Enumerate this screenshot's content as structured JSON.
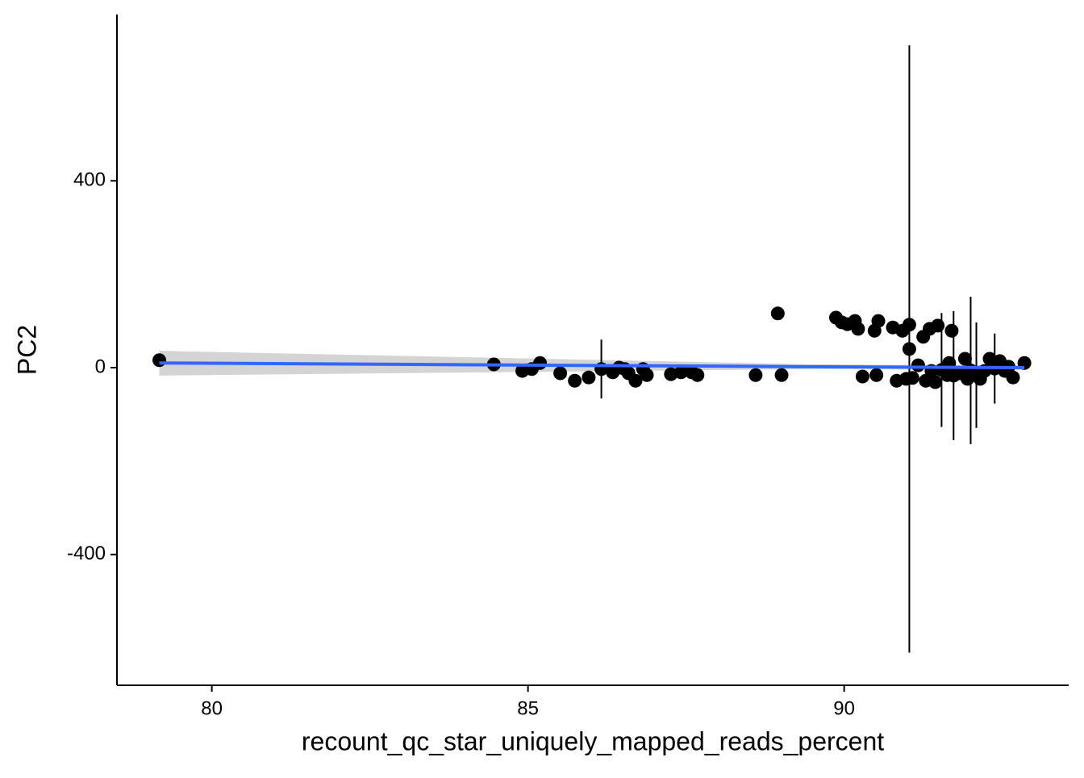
{
  "chart_data": {
    "type": "scatter",
    "x_label": "recount_qc_star_uniquely_mapped_reads_percent",
    "y_label": "PC2",
    "xlim": [
      78.5,
      93.55
    ],
    "ylim": [
      -680,
      756
    ],
    "xticks": [
      80,
      85,
      90
    ],
    "yticks": [
      -400,
      0,
      400
    ],
    "color": "#000000",
    "x": [
      79.17,
      84.46,
      84.91,
      85.06,
      85.19,
      85.51,
      85.74,
      85.96,
      86.16,
      86.34,
      86.44,
      86.53,
      86.59,
      86.7,
      86.82,
      86.88,
      87.26,
      87.42,
      87.59,
      87.68,
      88.6,
      88.95,
      89.01,
      89.87,
      89.96,
      90.05,
      90.17,
      90.22,
      90.29,
      90.48,
      90.54,
      90.51,
      90.77,
      90.83,
      90.92,
      90.98,
      91.03,
      91.03,
      91.08,
      91.17,
      91.25,
      91.29,
      91.35,
      91.38,
      91.44,
      91.48,
      91.54,
      91.63,
      91.7,
      91.73,
      91.66,
      91.82,
      91.91,
      91.95,
      92.0,
      92.02,
      92.09,
      92.15,
      92.22,
      92.3,
      92.38,
      92.46,
      92.54,
      92.6,
      92.67,
      92.85
    ],
    "values": [
      16,
      7,
      -7,
      -3,
      10,
      -12,
      -28,
      -21,
      -3,
      -10,
      0,
      -3,
      -12,
      -28,
      -3,
      -16,
      -14,
      -10,
      -10,
      -16,
      -16,
      116,
      -16,
      107,
      97,
      93,
      100,
      83,
      -19,
      79,
      100,
      -16,
      86,
      -28,
      79,
      -24,
      40,
      92,
      -22,
      5,
      66,
      -28,
      83,
      -7,
      -31,
      90,
      -5,
      -16,
      79,
      -17,
      10,
      -12,
      19,
      -24,
      -6,
      -16,
      -16,
      -24,
      -7,
      19,
      -2,
      14,
      -7,
      2,
      -21,
      10
    ],
    "errors": [
      null,
      null,
      null,
      null,
      null,
      null,
      null,
      null,
      63,
      null,
      null,
      null,
      null,
      null,
      null,
      null,
      null,
      null,
      null,
      null,
      null,
      null,
      null,
      null,
      null,
      null,
      null,
      null,
      null,
      null,
      null,
      null,
      null,
      null,
      null,
      null,
      650,
      null,
      null,
      null,
      null,
      null,
      null,
      null,
      null,
      null,
      122,
      null,
      null,
      138,
      null,
      null,
      null,
      null,
      158,
      null,
      113,
      null,
      null,
      null,
      75,
      null,
      null,
      null,
      null,
      null
    ],
    "fit": {
      "color": "#3366ff",
      "band_color": "#cccccc",
      "x": [
        79.17,
        89.5,
        92.85
      ],
      "y": [
        10,
        2,
        0
      ],
      "lower": [
        -17,
        -3,
        -5
      ],
      "upper": [
        36,
        7,
        5
      ]
    }
  }
}
